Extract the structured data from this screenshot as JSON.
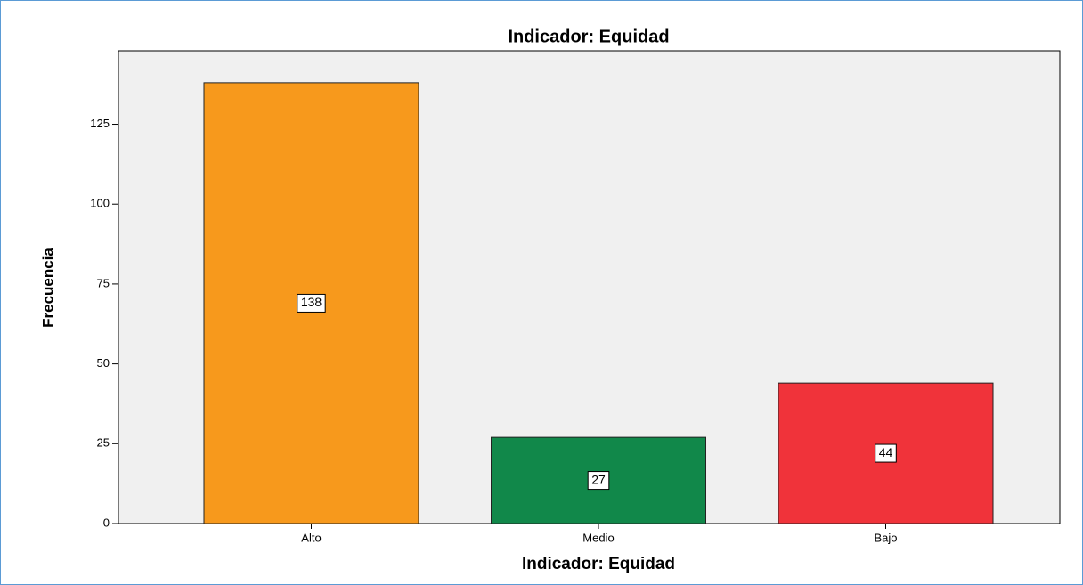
{
  "chart_data": {
    "type": "bar",
    "title": "Indicador: Equidad",
    "x_label": "Indicador: Equidad",
    "y_label": "Frecuencia",
    "categories": [
      "Alto",
      "Medio",
      "Bajo"
    ],
    "values": [
      138,
      27,
      44
    ],
    "colors": [
      "#f7991c",
      "#11884a",
      "#f0333a"
    ],
    "ylim": [
      0,
      148
    ],
    "yticks": [
      0,
      25,
      50,
      75,
      100,
      125
    ],
    "grid": false,
    "data_labels": true
  }
}
